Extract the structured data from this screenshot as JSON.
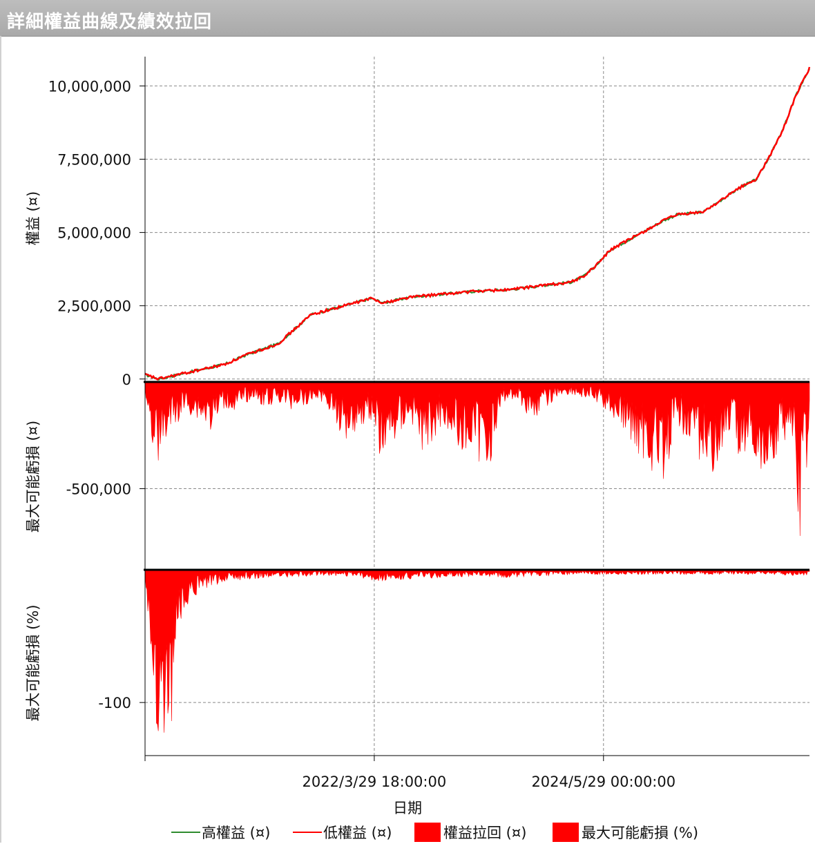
{
  "window": {
    "title": "詳細權益曲線及績效拉回"
  },
  "colors": {
    "high": "#2e8b2e",
    "low": "#ff0000",
    "fill": "#ff0000",
    "grid": "#888888"
  },
  "chart_data": [
    {
      "type": "line",
      "ylabel": "權益 (¤)",
      "xlabel": "日期",
      "ylim": [
        -100000,
        11000000
      ],
      "yticks": [
        0,
        2500000,
        5000000,
        7500000,
        10000000
      ],
      "ytick_labels": [
        "0",
        "2,500,000",
        "5,000,000",
        "7,500,000",
        "10,000,000"
      ],
      "x_range": [
        0,
        1
      ],
      "xticks": [
        0.345,
        0.69
      ],
      "xtick_labels": [
        "2022/3/29 18:00:00",
        "2024/5/29 00:00:00"
      ],
      "grid": true,
      "series": [
        {
          "name": "高權益 (¤)",
          "x": [
            0.0,
            0.02,
            0.05,
            0.08,
            0.12,
            0.15,
            0.2,
            0.25,
            0.3,
            0.34,
            0.36,
            0.4,
            0.45,
            0.5,
            0.55,
            0.6,
            0.64,
            0.66,
            0.68,
            0.7,
            0.74,
            0.78,
            0.8,
            0.84,
            0.86,
            0.88,
            0.9,
            0.92,
            0.94,
            0.96,
            0.98,
            1.0
          ],
          "y": [
            150000,
            0,
            150000,
            300000,
            500000,
            800000,
            1200000,
            2200000,
            2500000,
            2750000,
            2600000,
            2800000,
            2900000,
            3000000,
            3050000,
            3200000,
            3300000,
            3500000,
            3900000,
            4400000,
            4900000,
            5400000,
            5600000,
            5700000,
            6000000,
            6300000,
            6600000,
            6800000,
            7600000,
            8500000,
            9700000,
            10600000
          ]
        },
        {
          "name": "低權益 (¤)",
          "x": [
            0.0,
            0.02,
            0.05,
            0.08,
            0.12,
            0.15,
            0.2,
            0.25,
            0.3,
            0.34,
            0.36,
            0.4,
            0.45,
            0.5,
            0.55,
            0.6,
            0.64,
            0.66,
            0.68,
            0.7,
            0.74,
            0.78,
            0.8,
            0.84,
            0.86,
            0.88,
            0.9,
            0.92,
            0.94,
            0.96,
            0.98,
            1.0
          ],
          "y": [
            150000,
            0,
            150000,
            300000,
            500000,
            800000,
            1200000,
            2200000,
            2500000,
            2750000,
            2600000,
            2800000,
            2900000,
            3000000,
            3050000,
            3200000,
            3300000,
            3500000,
            3900000,
            4400000,
            4900000,
            5400000,
            5600000,
            5700000,
            6000000,
            6300000,
            6600000,
            6800000,
            7600000,
            8500000,
            9700000,
            10600000
          ]
        }
      ]
    },
    {
      "type": "area",
      "name": "權益拉回 (¤)",
      "ylabel": "最大可能虧損 (¤)",
      "ylim": [
        -880000,
        0
      ],
      "yticks": [
        -500000
      ],
      "ytick_labels": [
        "-500,000"
      ],
      "grid": true,
      "x": [
        0.0,
        0.01,
        0.02,
        0.03,
        0.04,
        0.06,
        0.08,
        0.1,
        0.12,
        0.14,
        0.16,
        0.18,
        0.2,
        0.22,
        0.24,
        0.26,
        0.28,
        0.3,
        0.32,
        0.34,
        0.35,
        0.36,
        0.38,
        0.4,
        0.42,
        0.44,
        0.45,
        0.46,
        0.48,
        0.5,
        0.52,
        0.54,
        0.56,
        0.58,
        0.6,
        0.62,
        0.64,
        0.66,
        0.68,
        0.7,
        0.72,
        0.74,
        0.76,
        0.78,
        0.8,
        0.82,
        0.84,
        0.86,
        0.88,
        0.9,
        0.92,
        0.94,
        0.96,
        0.97,
        0.98,
        0.985,
        0.99,
        1.0
      ],
      "y": [
        -30000,
        -250000,
        -310000,
        -260000,
        -200000,
        -120000,
        -150000,
        -200000,
        -100000,
        -130000,
        -60000,
        -100000,
        -80000,
        -110000,
        -90000,
        -70000,
        -120000,
        -230000,
        -190000,
        -150000,
        -280000,
        -330000,
        -220000,
        -150000,
        -310000,
        -200000,
        -160000,
        -250000,
        -270000,
        -330000,
        -320000,
        -80000,
        -70000,
        -150000,
        -120000,
        -60000,
        -50000,
        -70000,
        -90000,
        -130000,
        -200000,
        -280000,
        -350000,
        -380000,
        -200000,
        -220000,
        -340000,
        -380000,
        -250000,
        -300000,
        -320000,
        -380000,
        -250000,
        -180000,
        -400000,
        -840000,
        -460000,
        -300000
      ]
    },
    {
      "type": "area",
      "name": "最大可能虧損 (%)",
      "ylabel": "最大可能虧損 (%)",
      "ylim": [
        -140,
        0
      ],
      "yticks": [
        -100
      ],
      "ytick_labels": [
        "-100"
      ],
      "grid": true,
      "x": [
        0.0,
        0.01,
        0.015,
        0.02,
        0.025,
        0.03,
        0.035,
        0.04,
        0.045,
        0.05,
        0.055,
        0.06,
        0.07,
        0.08,
        0.09,
        0.1,
        0.12,
        0.14,
        0.16,
        0.18,
        0.2,
        0.25,
        0.3,
        0.35,
        0.4,
        0.45,
        0.5,
        0.55,
        0.6,
        0.65,
        0.7,
        0.75,
        0.8,
        0.85,
        0.9,
        0.95,
        0.98,
        1.0
      ],
      "y": [
        -5,
        -60,
        -110,
        -135,
        -138,
        -120,
        -105,
        -95,
        -70,
        -40,
        -30,
        -25,
        -20,
        -15,
        -12,
        -10,
        -8,
        -7,
        -6,
        -5,
        -5,
        -4,
        -4,
        -7,
        -6,
        -5,
        -4,
        -5,
        -4,
        -3,
        -3,
        -3,
        -3,
        -3,
        -3,
        -3,
        -4,
        -3
      ]
    }
  ],
  "legend": [
    {
      "label": "高權益 (¤)",
      "kind": "line",
      "color": "#2e8b2e"
    },
    {
      "label": "低權益 (¤)",
      "kind": "line",
      "color": "#ff0000"
    },
    {
      "label": "權益拉回 (¤)",
      "kind": "box",
      "color": "#ff0000"
    },
    {
      "label": "最大可能虧損 (%)",
      "kind": "box",
      "color": "#ff0000"
    }
  ]
}
